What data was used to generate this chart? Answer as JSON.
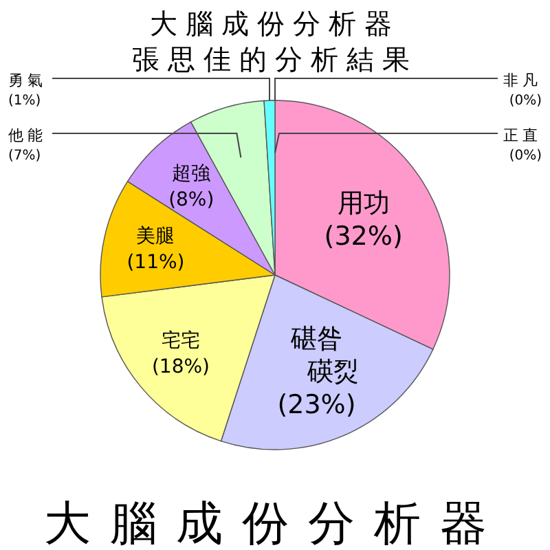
{
  "chart_data": {
    "type": "pie",
    "title": "大腦成份分析器",
    "subtitle": "張思佳的分析結果",
    "categories": [
      "非凡",
      "正直",
      "用功",
      "碪昝碤烮",
      "宅宅",
      "美腿",
      "超強",
      "他能",
      "勇氣"
    ],
    "values": [
      0,
      0,
      32,
      23,
      18,
      11,
      8,
      7,
      1
    ],
    "colors": [
      "#996633",
      "#999966",
      "#ff99cc",
      "#ccccff",
      "#ffff99",
      "#ffcc00",
      "#cc99ff",
      "#ccffcc",
      "#66ffff"
    ],
    "value_labels": [
      "(0%)",
      "(0%)",
      "(32%)",
      "(23%)",
      "(18%)",
      "(11%)",
      "(8%)",
      "(7%)",
      "(1%)"
    ],
    "annotations": [
      "大腦成份分析器"
    ]
  }
}
